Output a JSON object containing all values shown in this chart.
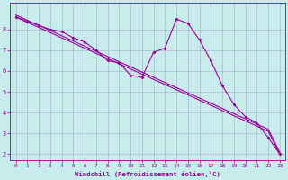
{
  "xlabel": "Windchill (Refroidissement éolien,°C)",
  "bg_color": "#c8ecec",
  "line_color": "#990099",
  "grid_color": "#aaaacc",
  "x_hours": [
    0,
    1,
    2,
    3,
    4,
    5,
    6,
    7,
    8,
    9,
    10,
    11,
    12,
    13,
    14,
    15,
    16,
    17,
    18,
    19,
    20,
    21,
    22,
    23
  ],
  "y_actual": [
    8.6,
    8.4,
    8.2,
    8.0,
    7.9,
    7.6,
    7.4,
    7.0,
    6.5,
    6.4,
    5.8,
    5.7,
    6.9,
    7.1,
    8.5,
    8.3,
    7.5,
    6.5,
    5.3,
    4.4,
    3.8,
    3.5,
    2.8,
    2.0
  ],
  "y_trend1": [
    8.6,
    8.35,
    8.1,
    7.85,
    7.6,
    7.35,
    7.1,
    6.85,
    6.6,
    6.35,
    6.1,
    5.85,
    5.6,
    5.35,
    5.1,
    4.85,
    4.6,
    4.35,
    4.1,
    3.85,
    3.6,
    3.35,
    3.1,
    2.0
  ],
  "y_trend2": [
    8.7,
    8.45,
    8.2,
    7.95,
    7.7,
    7.45,
    7.2,
    6.95,
    6.7,
    6.45,
    6.2,
    5.95,
    5.7,
    5.45,
    5.2,
    4.95,
    4.7,
    4.45,
    4.2,
    3.95,
    3.7,
    3.45,
    3.2,
    2.1
  ],
  "ylim": [
    1.7,
    9.3
  ],
  "xlim_min": -0.5,
  "xlim_max": 23.5,
  "yticks": [
    2,
    3,
    4,
    5,
    6,
    7,
    8
  ],
  "xticks": [
    0,
    1,
    2,
    3,
    4,
    5,
    6,
    7,
    8,
    9,
    10,
    11,
    12,
    13,
    14,
    15,
    16,
    17,
    18,
    19,
    20,
    21,
    22,
    23
  ],
  "tick_fontsize": 4.5,
  "xlabel_fontsize": 5.2,
  "lw": 0.8,
  "marker_size": 2.0
}
